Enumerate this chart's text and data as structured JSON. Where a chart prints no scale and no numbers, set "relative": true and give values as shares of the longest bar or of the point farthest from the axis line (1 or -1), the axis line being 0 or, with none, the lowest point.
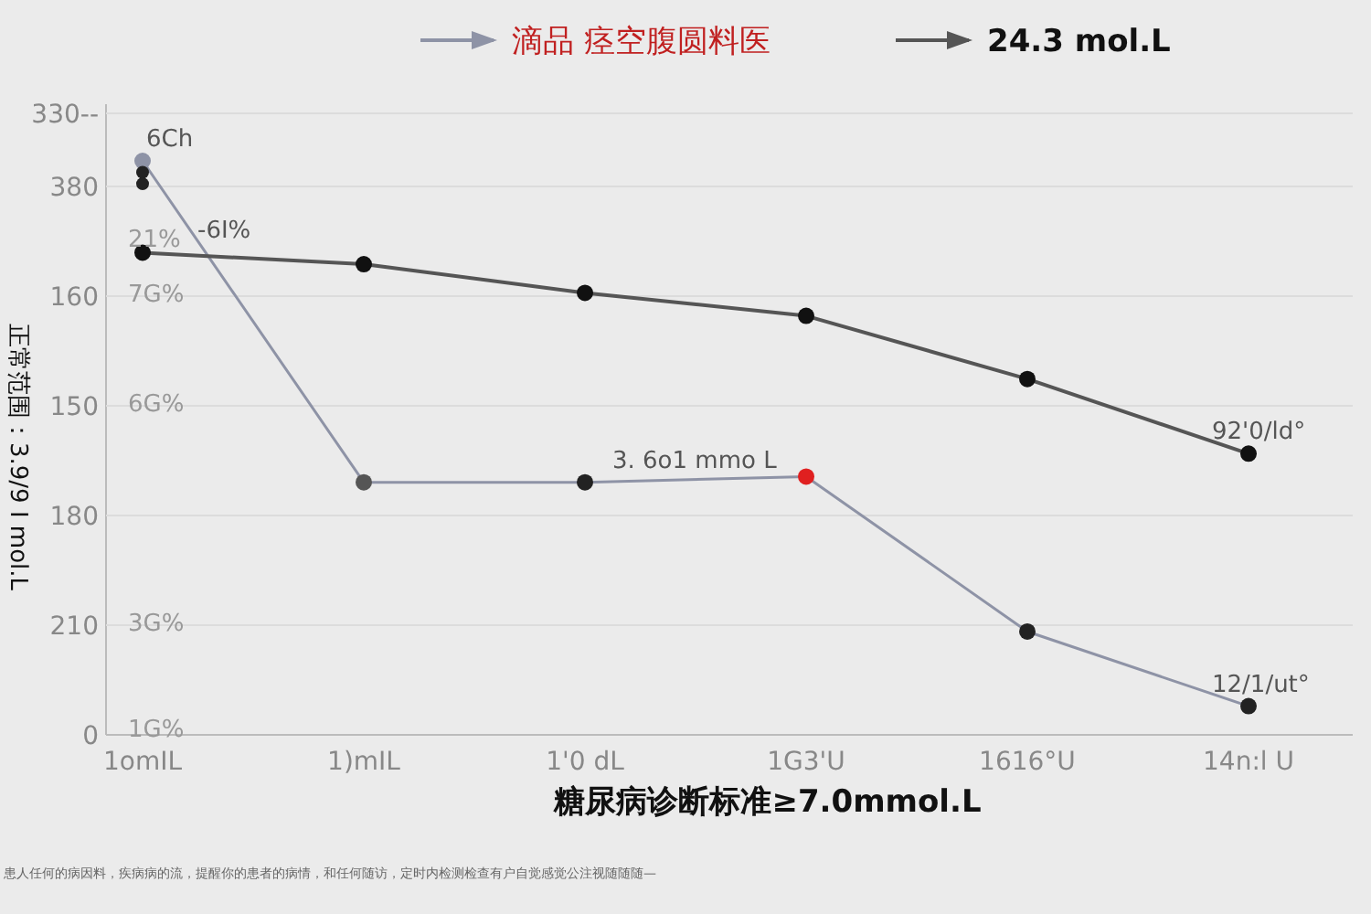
{
  "chart_data": {
    "type": "line",
    "xlabel": "糖尿病诊断标准≥7.0mmol.L",
    "ylabel": "正常范围：3.9/9 I mol.L",
    "relative": true,
    "categories": [
      "1omIL",
      "1)mIL",
      "1'0 dL",
      "1G3'U",
      "1616°U",
      "14n:l U"
    ],
    "series": [
      {
        "name": "滴品 痉空腹圆料医",
        "color": "#8e93a6",
        "values": [
          1,
          0.44,
          0.44,
          0.45,
          0.18,
          0.05
        ],
        "colors": [
          "#8e93a6",
          "#555555",
          "#222222",
          "#e02020",
          "#222222",
          "#222222"
        ]
      },
      {
        "name": "24.3 mol.L",
        "color": "#555555",
        "values": [
          0.84,
          0.82,
          0.77,
          0.73,
          0.62,
          0.49
        ],
        "colors": [
          "#111111",
          "#111111",
          "#111111",
          "#111111",
          "#111111",
          "#111111"
        ]
      },
      {
        "type": "scatter",
        "color": "#222222",
        "values": [
          0.98,
          null,
          null,
          null,
          null,
          null
        ]
      },
      {
        "type": "scatter",
        "color": "#222222",
        "values": [
          0.96,
          null,
          null,
          null,
          null,
          null
        ]
      }
    ],
    "annotations": [
      {
        "text": "-6I%",
        "x": "1omIL",
        "y": 0.84
      },
      {
        "text": "6Ch",
        "x": "1omIL",
        "y": 1
      },
      {
        "text": "3. 6o1 mmo L",
        "x": "1'0 dL",
        "y": 0.44
      },
      {
        "text": "92'0/ld°",
        "x": "14n:l U",
        "y": 0.49
      },
      {
        "text": "12/1/ut°",
        "x": "14n:l U",
        "y": 0.05
      },
      "0",
      "210",
      "180",
      "150",
      "160",
      "380",
      "330--",
      "1G%",
      "3G%",
      "6G%",
      "7G%",
      "21%",
      "患人任何的病因料，疾病病的流，提醒你的患者的病情，和任何随访，定时内检测检查有户自觉感觉公注视随随随—"
    ],
    "grid": "y",
    "legend": "top",
    "marker": "circle"
  }
}
